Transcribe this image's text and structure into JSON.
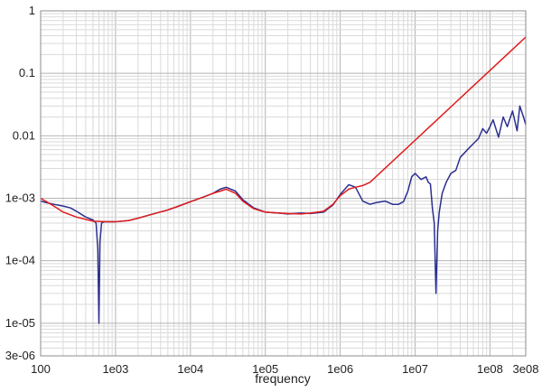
{
  "chart_data": {
    "type": "line",
    "title": "",
    "xlabel": "frequency",
    "ylabel": "",
    "x_scale": "log",
    "y_scale": "log",
    "xlim": [
      100,
      300000000
    ],
    "ylim": [
      3e-06,
      1
    ],
    "grid": true,
    "legend": "none",
    "x_ticks": [
      {
        "value": 100,
        "label": "100"
      },
      {
        "value": 1000,
        "label": "1e03"
      },
      {
        "value": 10000,
        "label": "1e04"
      },
      {
        "value": 100000,
        "label": "1e05"
      },
      {
        "value": 1000000,
        "label": "1e06"
      },
      {
        "value": 10000000,
        "label": "1e07"
      },
      {
        "value": 100000000,
        "label": "1e08"
      },
      {
        "value": 300000000,
        "label": "3e08"
      }
    ],
    "y_ticks": [
      {
        "value": 1,
        "label": "1"
      },
      {
        "value": 0.1,
        "label": "0.1"
      },
      {
        "value": 0.01,
        "label": "0.01"
      },
      {
        "value": 0.001,
        "label": "1e-03"
      },
      {
        "value": 0.0001,
        "label": "1e-04"
      },
      {
        "value": 1e-05,
        "label": "1e-05"
      },
      {
        "value": 3e-06,
        "label": "3e-06"
      }
    ],
    "series": [
      {
        "color": "#2b2f8f",
        "x": [
          100,
          120,
          150,
          200,
          250,
          300,
          400,
          500,
          550,
          580,
          600,
          620,
          650,
          700,
          800,
          1000,
          1500,
          2000,
          3000,
          5000,
          7000,
          10000,
          15000,
          20000,
          25000,
          30000,
          40000,
          50000,
          70000,
          100000,
          150000,
          200000,
          300000,
          400000,
          600000,
          800000,
          1000000,
          1300000,
          1600000,
          2000000,
          2500000,
          3000000,
          4000000,
          5000000,
          6000000,
          7000000,
          8000000,
          9000000,
          10000000,
          12000000,
          14000000,
          15000000,
          16000000,
          17000000,
          18000000,
          19000000,
          20000000,
          21000000,
          23000000,
          26000000,
          30000000,
          35000000,
          40000000,
          50000000,
          60000000,
          70000000,
          80000000,
          90000000,
          100000000,
          110000000,
          130000000,
          150000000,
          170000000,
          200000000,
          230000000,
          250000000,
          280000000,
          300000000
        ],
        "values": [
          0.0009,
          0.00085,
          0.0008,
          0.00075,
          0.0007,
          0.00062,
          0.0005,
          0.00045,
          0.0004,
          0.00015,
          1e-05,
          0.0002,
          0.0004,
          0.00042,
          0.00042,
          0.00042,
          0.00044,
          0.00048,
          0.00055,
          0.00065,
          0.00075,
          0.00088,
          0.00105,
          0.0012,
          0.0014,
          0.0015,
          0.0013,
          0.00095,
          0.0007,
          0.0006,
          0.00058,
          0.00056,
          0.00058,
          0.00057,
          0.0006,
          0.00078,
          0.00115,
          0.00165,
          0.0015,
          0.0009,
          0.0008,
          0.00085,
          0.0009,
          0.0008,
          0.0008,
          0.00088,
          0.0013,
          0.0022,
          0.0025,
          0.002,
          0.0022,
          0.0018,
          0.0017,
          0.0007,
          0.0004,
          3e-05,
          0.0003,
          0.0006,
          0.0012,
          0.0018,
          0.0025,
          0.0028,
          0.0045,
          0.006,
          0.0075,
          0.009,
          0.013,
          0.011,
          0.014,
          0.018,
          0.0095,
          0.02,
          0.014,
          0.025,
          0.012,
          0.03,
          0.02,
          0.015
        ]
      },
      {
        "color": "#e01c1c",
        "x": [
          100,
          150,
          200,
          300,
          500,
          800,
          1000,
          1500,
          2000,
          3000,
          5000,
          7000,
          10000,
          15000,
          20000,
          25000,
          30000,
          40000,
          50000,
          70000,
          100000,
          150000,
          200000,
          300000,
          400000,
          600000,
          800000,
          1000000,
          1300000,
          1600000,
          2000000,
          2500000,
          300000000
        ],
        "values": [
          0.001,
          0.00075,
          0.0006,
          0.0005,
          0.00043,
          0.00042,
          0.00042,
          0.00044,
          0.00048,
          0.00055,
          0.00065,
          0.00075,
          0.00088,
          0.00105,
          0.0012,
          0.0013,
          0.0014,
          0.0012,
          0.0009,
          0.00068,
          0.0006,
          0.00058,
          0.00057,
          0.00056,
          0.00058,
          0.00062,
          0.0008,
          0.0011,
          0.0014,
          0.0015,
          0.0016,
          0.0018,
          0.38
        ]
      }
    ]
  }
}
